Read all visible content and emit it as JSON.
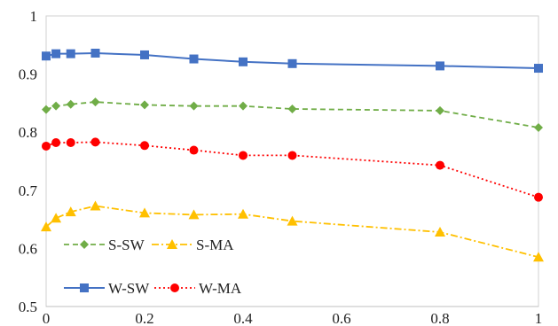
{
  "chart_data": {
    "type": "line",
    "title": "",
    "xlabel": "",
    "ylabel": "",
    "xlim": [
      0,
      1
    ],
    "ylim": [
      0.5,
      1
    ],
    "x_ticks": [
      "0",
      "0.2",
      "0.4",
      "0.6",
      "0.8",
      "1"
    ],
    "y_ticks": [
      "0.5",
      "0.6",
      "0.7",
      "0.8",
      "0.9",
      "1"
    ],
    "grid": false,
    "legend_position": "lower-left",
    "x": [
      0,
      0.02,
      0.05,
      0.1,
      0.2,
      0.3,
      0.4,
      0.5,
      0.8,
      1
    ],
    "series": [
      {
        "name": "W-SW",
        "color": "#4472C4",
        "marker": "square",
        "line_style": "solid",
        "values": [
          0.931,
          0.935,
          0.935,
          0.936,
          0.933,
          0.926,
          0.921,
          0.918,
          0.914,
          0.91
        ]
      },
      {
        "name": "S-SW",
        "color": "#70AD47",
        "marker": "diamond",
        "line_style": "dashed",
        "values": [
          0.839,
          0.845,
          0.848,
          0.852,
          0.847,
          0.845,
          0.845,
          0.84,
          0.837,
          0.808
        ]
      },
      {
        "name": "W-MA",
        "color": "#FF0000",
        "marker": "circle",
        "line_style": "dotted",
        "values": [
          0.776,
          0.782,
          0.782,
          0.783,
          0.777,
          0.769,
          0.76,
          0.76,
          0.743,
          0.688
        ]
      },
      {
        "name": "S-MA",
        "color": "#FFC000",
        "marker": "triangle",
        "line_style": "dash-dot",
        "values": [
          0.637,
          0.652,
          0.663,
          0.673,
          0.661,
          0.658,
          0.659,
          0.647,
          0.628,
          0.585
        ]
      }
    ]
  }
}
